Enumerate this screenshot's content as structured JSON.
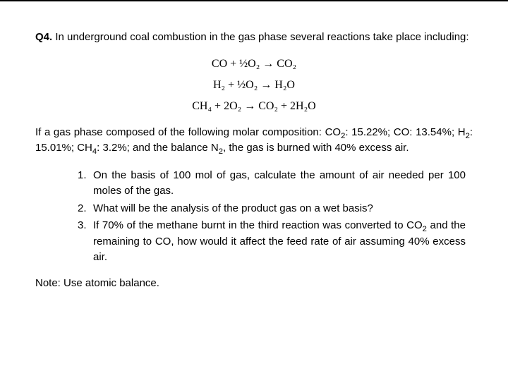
{
  "colors": {
    "text": "#000000",
    "background": "#ffffff",
    "border": "#000000"
  },
  "header": {
    "qnum": "Q4.",
    "intro": " In underground coal combustion in the gas phase several reactions take place including:"
  },
  "equations": {
    "eq1": "CO + ½O₂ → CO₂",
    "eq2": "H₂ + ½O₂ → H₂O",
    "eq3": "CH₄ + 2O₂ → CO₂ + 2H₂O"
  },
  "middle": {
    "part1": "If a gas phase composed of the following molar composition: CO",
    "sub1": "2",
    "part2": ": 15.22%; CO: 13.54%; H",
    "sub2": "2",
    "part3": ": 15.01%; CH",
    "sub3": "4",
    "part4": ": 3.2%; and the balance N",
    "sub4": "2",
    "part5": ", the gas is burned with 40% excess air."
  },
  "list": {
    "items": [
      {
        "num": "1.",
        "text": "On the basis of 100 mol of gas, calculate the amount of air needed per 100 moles of the gas."
      },
      {
        "num": "2.",
        "text": "What will be the analysis of the product gas on a wet basis?"
      },
      {
        "num": "3.",
        "pre": "If 70% of the methane burnt in the third reaction was converted to CO",
        "sub": "2",
        "post": " and the remaining to CO, how would it affect the feed rate of air assuming 40% excess air."
      }
    ]
  },
  "note": "Note: Use atomic balance."
}
